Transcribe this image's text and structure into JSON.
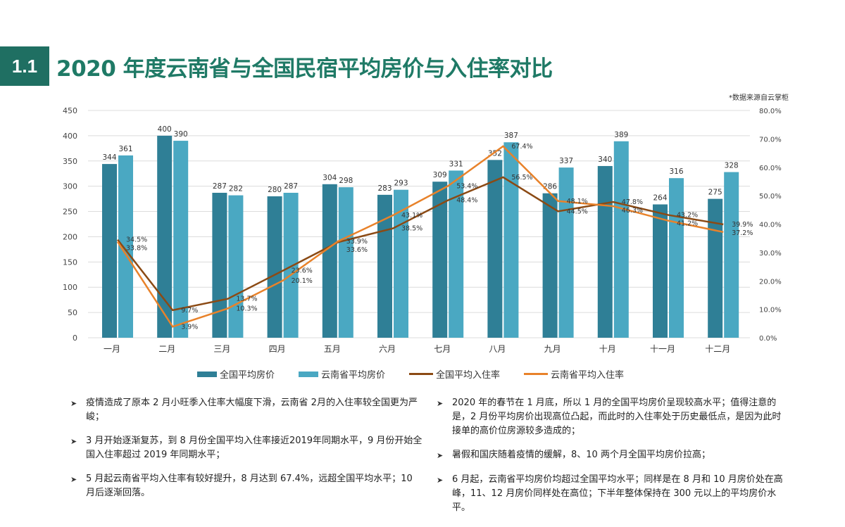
{
  "header": {
    "section_number": "1.1",
    "title": "2020 年度云南省与全国民宿平均房价与入住率对比",
    "source_note": "*数据来源自云掌柜"
  },
  "colors": {
    "badge": "#1f6f62",
    "title": "#1f7a66",
    "national_price": "#2f7f96",
    "yunnan_price": "#4aa8c2",
    "national_occupancy": "#8b4a14",
    "yunnan_occupancy": "#e8822a"
  },
  "chart_data": {
    "type": "bar+line",
    "categories": [
      "一月",
      "二月",
      "三月",
      "四月",
      "五月",
      "六月",
      "七月",
      "八月",
      "九月",
      "十月",
      "十一月",
      "十二月"
    ],
    "y_left": {
      "range": [
        0,
        450
      ],
      "ticks": [
        "0",
        "50",
        "100",
        "150",
        "200",
        "250",
        "300",
        "350",
        "400",
        "450"
      ]
    },
    "y_right": {
      "range": [
        0,
        80
      ],
      "ticks": [
        "0.0%",
        "10.0%",
        "20.0%",
        "30.0%",
        "40.0%",
        "50.0%",
        "60.0%",
        "70.0%",
        "80.0%"
      ]
    },
    "grid": true,
    "legend_position": "bottom",
    "series": [
      {
        "name": "全国平均房价",
        "type": "bar",
        "axis": "left",
        "values": [
          344,
          400,
          287,
          280,
          304,
          283,
          309,
          352,
          286,
          340,
          264,
          275
        ]
      },
      {
        "name": "云南省平均房价",
        "type": "bar",
        "axis": "left",
        "values": [
          361,
          390,
          282,
          287,
          298,
          293,
          331,
          387,
          337,
          389,
          316,
          328
        ]
      },
      {
        "name": "全国平均入住率",
        "type": "line",
        "axis": "right",
        "values": [
          34.5,
          9.7,
          13.7,
          23.6,
          33.6,
          38.5,
          48.4,
          56.5,
          44.5,
          47.8,
          43.2,
          39.9
        ]
      },
      {
        "name": "云南省平均入住率",
        "type": "line",
        "axis": "right",
        "values": [
          33.8,
          3.9,
          10.3,
          20.1,
          33.9,
          43.1,
          53.4,
          67.4,
          48.1,
          46.3,
          41.2,
          37.2
        ]
      }
    ]
  },
  "notes_left": [
    "疫情造成了原本 2 月小旺季入住率大幅度下滑，云南省 2月的入住率较全国更为严峻；",
    "3 月开始逐渐复苏，到 8 月份全国平均入住率接近2019年同期水平，9 月份开始全国入住率超过 2019 年同期水平；",
    "5 月起云南省平均入住率有较好提升，8 月达到 67.4%，远超全国平均水平；10 月后逐渐回落。"
  ],
  "notes_right": [
    "2020 年的春节在 1 月底，所以 1 月的全国平均房价呈现较高水平；值得注意的是，2 月份平均房价出现高位凸起，而此时的入住率处于历史最低点，是因为此时接单的高价位房源较多造成的；",
    "暑假和国庆随着疫情的缓解，8、10 两个月全国平均房价拉高；",
    "6 月起，云南省平均房价均超过全国平均水平；同样是在 8 月和 10 月房价处在高峰，11、12 月房价同样处在高位；下半年整体保持在 300 元以上的平均房价水平。"
  ]
}
